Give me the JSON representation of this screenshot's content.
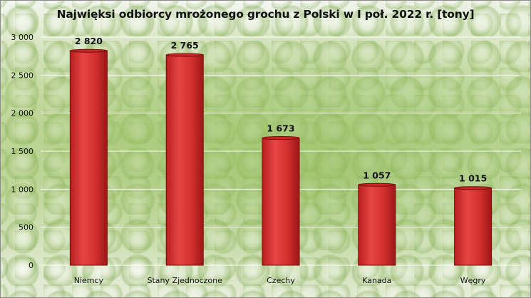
{
  "chart_data": {
    "type": "bar",
    "title": "Najwięksi odbiorcy mrożonego grochu z Polski w I poł. 2022 r. [tony]",
    "xlabel": "",
    "ylabel": "",
    "categories": [
      "Niemcy",
      "Stany Zjednoczone",
      "Czechy",
      "Kanada",
      "Węgry"
    ],
    "values": [
      2820,
      2765,
      1673,
      1057,
      1015
    ],
    "value_labels": [
      "2 820",
      "2 765",
      "1 673",
      "1 057",
      "1 015"
    ],
    "ylim": [
      0,
      3000
    ],
    "y_ticks": [
      0,
      500,
      1000,
      1500,
      2000,
      2500,
      3000
    ],
    "y_tick_labels": [
      "0",
      "500",
      "1 000",
      "1 500",
      "2 000",
      "2 500",
      "3 000"
    ],
    "grid": true,
    "legend": "none",
    "bar_color": "#d32f2f",
    "bar_edge_color": "#7a0e0e"
  }
}
